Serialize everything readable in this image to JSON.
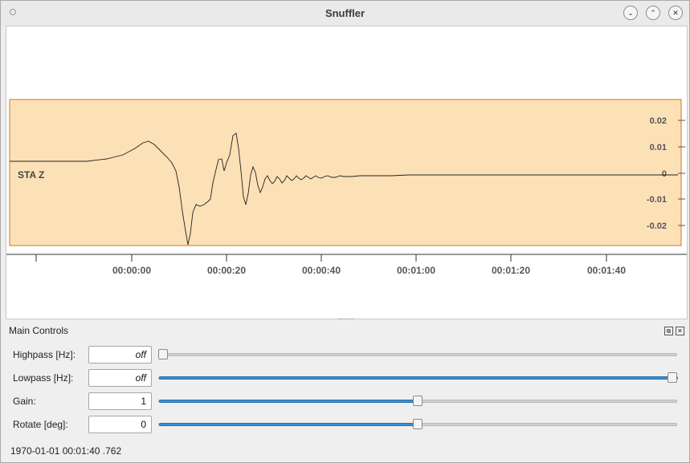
{
  "window": {
    "title": "Snuffler",
    "buttons": {
      "minimize_icon": "chevron-down-icon",
      "maximize_icon": "chevron-up-icon",
      "close_icon": "close-icon"
    }
  },
  "trace": {
    "label": "STA  Z",
    "fill_color": "#fde1b6",
    "border_color": "#c8782a",
    "y_ticks": [
      "0.02",
      "0.01",
      "0",
      "-0.01",
      "-0.02"
    ],
    "x_ticks": [
      "00:00:00",
      "00:00:20",
      "00:00:40",
      "00:01:00",
      "00:01:20",
      "00:01:40"
    ]
  },
  "controls": {
    "title": "Main Controls",
    "rows": [
      {
        "label": "Highpass [Hz]:",
        "value": "off",
        "level": 0.0
      },
      {
        "label": "Lowpass [Hz]:",
        "value": "off",
        "level": 1.0
      },
      {
        "label": "Gain:",
        "value": "1",
        "level": 0.5
      },
      {
        "label": "Rotate [deg]:",
        "value": "0",
        "level": 0.5
      }
    ],
    "status": "1970-01-01 00:01:40 .762"
  }
}
